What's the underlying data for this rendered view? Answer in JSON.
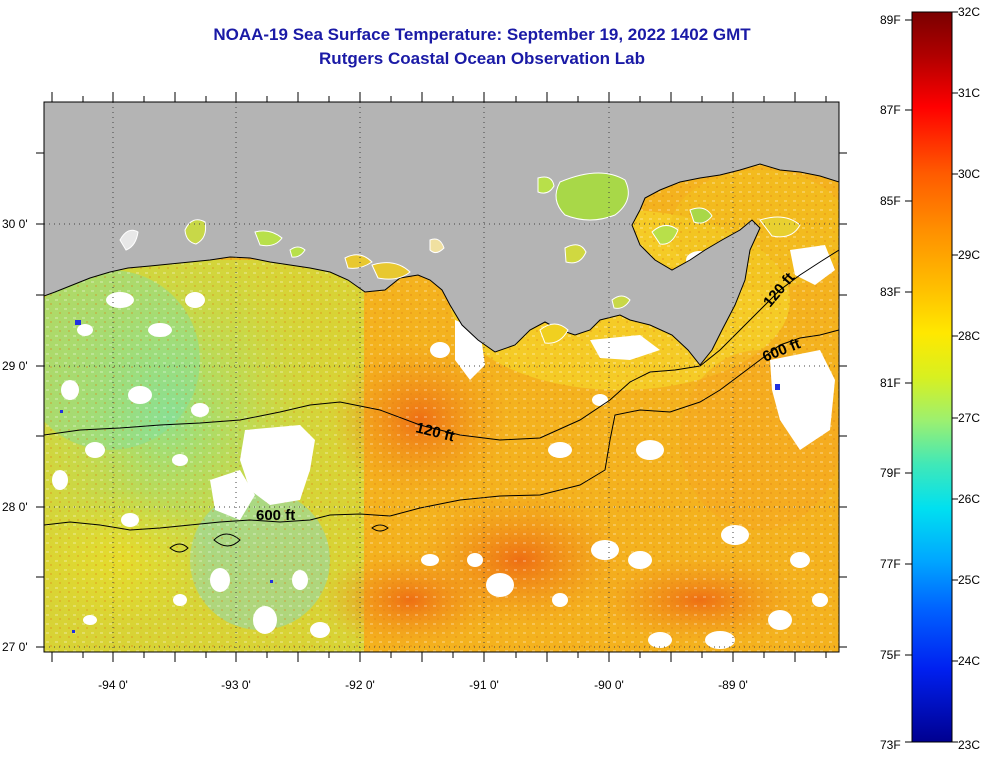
{
  "title": {
    "line1": "NOAA-19 Sea Surface Temperature:  September 19, 2022 1402 GMT",
    "line2": "Rutgers Coastal Ocean Observation Lab"
  },
  "axes": {
    "lat_labels": [
      "30 0'",
      "29 0'",
      "28 0'",
      "27 0'"
    ],
    "lon_labels": [
      "-94 0'",
      "-93 0'",
      "-92 0'",
      "-91 0'",
      "-90 0'",
      "-89 0'"
    ]
  },
  "contours": {
    "label_120_west": "120 ft",
    "label_120_east": "120 ft",
    "label_600_west": "600 ft",
    "label_600_east": "600 ft"
  },
  "colorbar": {
    "fahrenheit": [
      "89F",
      "87F",
      "85F",
      "83F",
      "81F",
      "79F",
      "77F",
      "75F",
      "73F"
    ],
    "celsius": [
      "32C",
      "31C",
      "30C",
      "29C",
      "28C",
      "27C",
      "26C",
      "25C",
      "24C",
      "23C"
    ],
    "range_c": [
      23,
      32
    ]
  },
  "colors": {
    "land": "#b4b4b4",
    "cloud": "#ffffff",
    "title": "#1a1aa6",
    "ocean_warm": "#f7a21c",
    "ocean_mid": "#f5d21a",
    "ocean_cool": "#b8e04a"
  }
}
